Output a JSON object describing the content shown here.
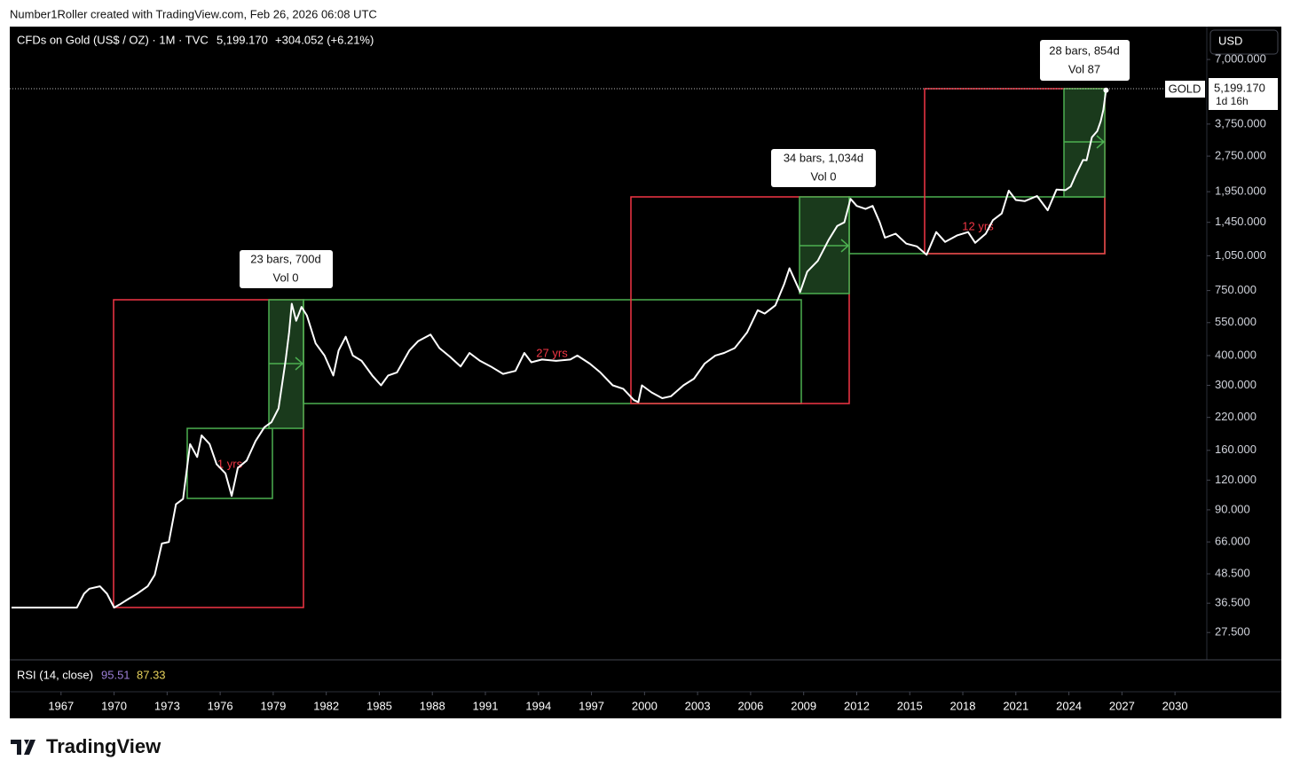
{
  "header": {
    "credit": "Number1Roller created with TradingView.com, Feb 26, 2026 06:08 UTC",
    "symbol": "CFDs on Gold (US$ / OZ) · 1M · TVC",
    "price": "5,199.170",
    "change": "+304.052 (+6.21%)",
    "currency": "USD",
    "ticker": "GOLD",
    "last_price": "5,199.170",
    "countdown": "1d 16h"
  },
  "indicator": {
    "name": "RSI (14, close)",
    "value_1": "95.51",
    "value_2": "87.33"
  },
  "annotations": {
    "callout_1": [
      "23 bars, 700d",
      "Vol 0"
    ],
    "callout_2": [
      "34 bars, 1,034d",
      "Vol 0"
    ],
    "callout_3": [
      "28 bars, 854d",
      "Vol 87"
    ],
    "span_1": "1 yrs",
    "span_2": "27 yrs",
    "span_3": "12 yrs"
  },
  "brand": "TradingView",
  "chart_data": {
    "type": "line",
    "log_scale": true,
    "color": "#ffffff",
    "grid": false,
    "x": [
      1964.2,
      1966,
      1967.9,
      1968.3,
      1968.6,
      1969.2,
      1969.6,
      1970.0,
      1970.3,
      1970.8,
      1971.3,
      1971.9,
      1972.3,
      1972.7,
      1973.1,
      1973.5,
      1973.9,
      1974.3,
      1974.7,
      1974.95,
      1975.4,
      1975.8,
      1976.3,
      1976.65,
      1977.0,
      1977.5,
      1978.0,
      1978.5,
      1978.9,
      1979.3,
      1979.7,
      1979.9,
      1980.05,
      1980.3,
      1980.6,
      1980.9,
      1981.4,
      1981.9,
      1982.4,
      1982.7,
      1983.1,
      1983.5,
      1984.0,
      1984.6,
      1985.1,
      1985.5,
      1986.0,
      1986.7,
      1987.2,
      1987.9,
      1988.4,
      1989.0,
      1989.6,
      1990.1,
      1990.7,
      1991.3,
      1992.0,
      1992.7,
      1993.2,
      1993.6,
      1994.2,
      1995.0,
      1995.8,
      1996.2,
      1996.9,
      1997.5,
      1998.2,
      1998.8,
      1999.4,
      1999.65,
      1999.85,
      2000.4,
      2001.0,
      2001.5,
      2002.2,
      2002.8,
      2003.4,
      2004.0,
      2004.5,
      2005.1,
      2005.8,
      2006.4,
      2006.8,
      2007.4,
      2007.9,
      2008.2,
      2008.8,
      2009.2,
      2009.8,
      2010.4,
      2010.9,
      2011.3,
      2011.65,
      2012.0,
      2012.5,
      2012.9,
      2013.3,
      2013.6,
      2014.2,
      2014.8,
      2015.4,
      2015.95,
      2016.5,
      2017.0,
      2017.7,
      2018.3,
      2018.7,
      2019.3,
      2019.7,
      2020.2,
      2020.6,
      2021.0,
      2021.5,
      2022.2,
      2022.8,
      2023.3,
      2023.8,
      2024.1,
      2024.4,
      2024.8,
      2025.0,
      2025.3,
      2025.6,
      2025.8,
      2025.95,
      2026.1
    ],
    "values": [
      35,
      35,
      35,
      40,
      42,
      43,
      40,
      35,
      36,
      38,
      40,
      43,
      48,
      65,
      66,
      95,
      100,
      170,
      150,
      185,
      170,
      140,
      128,
      103,
      135,
      145,
      175,
      200,
      210,
      240,
      380,
      500,
      660,
      560,
      640,
      590,
      450,
      400,
      330,
      420,
      480,
      400,
      380,
      330,
      300,
      330,
      340,
      420,
      460,
      490,
      430,
      395,
      360,
      410,
      380,
      360,
      335,
      345,
      410,
      375,
      385,
      380,
      385,
      400,
      370,
      340,
      300,
      290,
      260,
      255,
      300,
      280,
      265,
      270,
      300,
      320,
      370,
      400,
      410,
      430,
      500,
      620,
      600,
      650,
      800,
      930,
      740,
      900,
      1000,
      1220,
      1400,
      1450,
      1820,
      1700,
      1650,
      1700,
      1450,
      1250,
      1300,
      1180,
      1150,
      1060,
      1320,
      1200,
      1280,
      1320,
      1190,
      1300,
      1480,
      1580,
      1970,
      1800,
      1780,
      1870,
      1630,
      1990,
      1980,
      2050,
      2300,
      2650,
      2640,
      3300,
      3500,
      3850,
      4300,
      5199.17
    ],
    "xlim": [
      1964.1,
      2031.8
    ],
    "ylim": [
      21.3,
      9620
    ],
    "xticks": [
      1967,
      1970,
      1973,
      1976,
      1979,
      1982,
      1985,
      1988,
      1991,
      1994,
      1997,
      2000,
      2003,
      2006,
      2009,
      2012,
      2015,
      2018,
      2021,
      2024,
      2027,
      2030
    ],
    "yticks": [
      {
        "value": 27.5,
        "label": "27.500"
      },
      {
        "value": 36.5,
        "label": "36.500"
      },
      {
        "value": 48.5,
        "label": "48.500"
      },
      {
        "value": 66,
        "label": "66.000"
      },
      {
        "value": 90,
        "label": "90.000"
      },
      {
        "value": 120,
        "label": "120.000"
      },
      {
        "value": 160,
        "label": "160.000"
      },
      {
        "value": 220,
        "label": "220.000"
      },
      {
        "value": 300,
        "label": "300.000"
      },
      {
        "value": 400,
        "label": "400.000"
      },
      {
        "value": 550,
        "label": "550.000"
      },
      {
        "value": 750,
        "label": "750.000"
      },
      {
        "value": 1050,
        "label": "1,050.000"
      },
      {
        "value": 1450,
        "label": "1,450.000"
      },
      {
        "value": 1950,
        "label": "1,950.000"
      },
      {
        "value": 2750,
        "label": "2,750.000"
      },
      {
        "value": 3750,
        "label": "3,750.000"
      },
      {
        "value": 7000,
        "label": "7,000.000"
      }
    ]
  }
}
